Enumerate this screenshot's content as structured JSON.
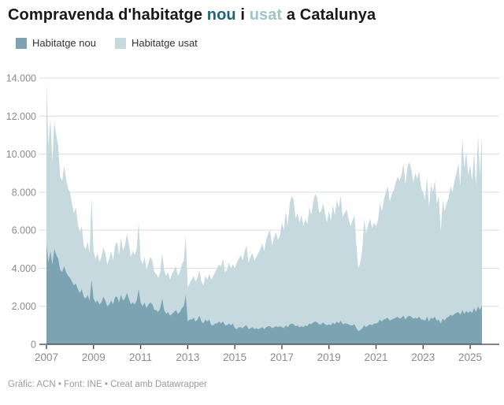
{
  "title": {
    "part1": "Compravenda d'habitatge ",
    "nou_word": "nou",
    "part2": " i ",
    "usat_word": "usat",
    "part3": " a Catalunya"
  },
  "footer": {
    "text": "Gràfic: ACN • Font: INE • Creat amb Datawrapper"
  },
  "colors": {
    "nou_area": "#7ca3b1",
    "usat_area": "#c5d9de",
    "nou_title_word": "#206478",
    "usat_title_word": "#9ec4ce",
    "gridline": "#dcdcdc",
    "axis_line": "#3b3b3b",
    "tick_label": "#8c8c8c"
  },
  "chart_data": {
    "type": "area",
    "stacked": true,
    "title": "Compravenda d'habitatge nou i usat a Catalunya",
    "x_start": "2007-01",
    "x_frequency": "monthly",
    "x_end": "2025-07",
    "xlabel": "",
    "ylabel": "",
    "ylim": [
      0,
      14000
    ],
    "grid": "horizontal",
    "legend_position": "top-left",
    "x_tick_labels": [
      "2007",
      "2009",
      "2011",
      "2013",
      "2015",
      "2017",
      "2019",
      "2021",
      "2023",
      "2025"
    ],
    "y_ticks": [
      {
        "value": 0,
        "label": "0"
      },
      {
        "value": 2000,
        "label": "2.000"
      },
      {
        "value": 4000,
        "label": "4.000"
      },
      {
        "value": 6000,
        "label": "6.000"
      },
      {
        "value": 8000,
        "label": "8.000"
      },
      {
        "value": 10000,
        "label": "10.000"
      },
      {
        "value": 12000,
        "label": "12.000"
      },
      {
        "value": 14000,
        "label": "14.000"
      }
    ],
    "series": [
      {
        "name": "Habitatge nou",
        "color": "#7ca3b1",
        "values": [
          5300,
          4300,
          4900,
          4200,
          5000,
          4700,
          4500,
          3900,
          3800,
          4100,
          3800,
          3600,
          3500,
          3300,
          3100,
          3200,
          2900,
          2700,
          2900,
          2500,
          2400,
          2600,
          2300,
          3400,
          2400,
          2200,
          2300,
          2100,
          2200,
          2500,
          2300,
          2000,
          2100,
          2300,
          2100,
          2500,
          2500,
          2200,
          2600,
          2300,
          2400,
          2700,
          2400,
          2100,
          2200,
          2100,
          2300,
          2900,
          2200,
          2000,
          2200,
          1900,
          2100,
          2200,
          2100,
          1800,
          1800,
          1700,
          1900,
          2400,
          1800,
          1600,
          1700,
          1500,
          1600,
          1700,
          1800,
          1600,
          1700,
          1900,
          2000,
          2600,
          1200,
          1300,
          1300,
          1400,
          1200,
          1300,
          1500,
          1200,
          1100,
          1300,
          1200,
          1300,
          1000,
          1000,
          1100,
          1100,
          1200,
          1100,
          1200,
          1000,
          1000,
          1100,
          1000,
          1100,
          850,
          800,
          900,
          900,
          850,
          950,
          1000,
          800,
          850,
          900,
          800,
          850,
          800,
          850,
          900,
          800,
          900,
          950,
          950,
          850,
          900,
          950,
          900,
          950,
          900,
          850,
          1000,
          900,
          1050,
          1100,
          1050,
          950,
          1000,
          900,
          950,
          900,
          1000,
          950,
          1100,
          1050,
          1150,
          1200,
          1150,
          1050,
          1050,
          1150,
          1050,
          1000,
          1050,
          1000,
          1150,
          1050,
          1200,
          1100,
          1250,
          1050,
          1100,
          1100,
          1050,
          1000,
          1000,
          1050,
          850,
          700,
          750,
          850,
          1000,
          900,
          1000,
          1050,
          1000,
          1100,
          1100,
          1150,
          1300,
          1200,
          1300,
          1350,
          1400,
          1250,
          1300,
          1350,
          1400,
          1450,
          1350,
          1400,
          1500,
          1300,
          1450,
          1500,
          1450,
          1350,
          1400,
          1350,
          1450,
          1300,
          1300,
          1250,
          1450,
          1200,
          1400,
          1350,
          1450,
          1250,
          1300,
          1100,
          1350,
          1250,
          1400,
          1450,
          1550,
          1500,
          1600,
          1650,
          1700,
          1550,
          1800,
          1600,
          1750,
          1650,
          1750,
          1650,
          1900,
          1700,
          2000,
          1800,
          2050
        ]
      },
      {
        "name": "Habitatge usat",
        "color": "#c5d9de",
        "values": [
          8500,
          6100,
          7000,
          5400,
          6700,
          6300,
          5900,
          4900,
          4800,
          5300,
          4900,
          4600,
          4500,
          4100,
          3800,
          4000,
          3400,
          3200,
          3300,
          2700,
          2600,
          2800,
          2500,
          4300,
          2500,
          2300,
          2500,
          2200,
          2400,
          2600,
          2500,
          2200,
          2400,
          2600,
          2300,
          2700,
          2900,
          2500,
          3000,
          2600,
          2800,
          3100,
          2900,
          2500,
          2700,
          2600,
          2700,
          3500,
          2300,
          2200,
          2400,
          2000,
          2200,
          2400,
          2300,
          2000,
          1900,
          1800,
          1900,
          2400,
          2100,
          2000,
          2100,
          1900,
          2100,
          2200,
          2300,
          2000,
          2100,
          2300,
          2400,
          3100,
          1800,
          1900,
          2100,
          2200,
          2100,
          2200,
          2400,
          2100,
          2000,
          2300,
          2200,
          2400,
          2400,
          2600,
          2700,
          2900,
          3000,
          3000,
          3300,
          2800,
          2900,
          3200,
          3000,
          3100,
          3150,
          3500,
          3600,
          3800,
          3550,
          3950,
          4200,
          3500,
          3750,
          3900,
          3600,
          3750,
          4000,
          4150,
          4400,
          4100,
          4600,
          4850,
          5050,
          4350,
          4700,
          4950,
          4600,
          4750,
          5500,
          5150,
          6000,
          5300,
          6350,
          6700,
          6550,
          5650,
          5900,
          5500,
          5850,
          5300,
          5600,
          5350,
          6100,
          5750,
          6350,
          6700,
          6550,
          5850,
          5950,
          6250,
          5850,
          5400,
          5950,
          5500,
          6150,
          5750,
          6400,
          6100,
          6550,
          5650,
          5800,
          6000,
          5550,
          5200,
          5500,
          5750,
          4350,
          3300,
          3550,
          4150,
          5600,
          4900,
          5300,
          5550,
          5100,
          5300,
          5100,
          5350,
          6100,
          5800,
          6300,
          6650,
          6900,
          6250,
          6600,
          6750,
          7100,
          7350,
          7250,
          7500,
          8000,
          7100,
          7850,
          8100,
          7750,
          7150,
          7600,
          7350,
          7650,
          6900,
          6700,
          6350,
          7350,
          6000,
          7000,
          6650,
          7150,
          6150,
          6500,
          4800,
          6250,
          5750,
          6000,
          6250,
          6750,
          6500,
          7000,
          7350,
          7800,
          6750,
          9000,
          7700,
          8350,
          7250,
          7650,
          6950,
          8200,
          6600,
          8950,
          7100,
          8950
        ]
      }
    ]
  }
}
